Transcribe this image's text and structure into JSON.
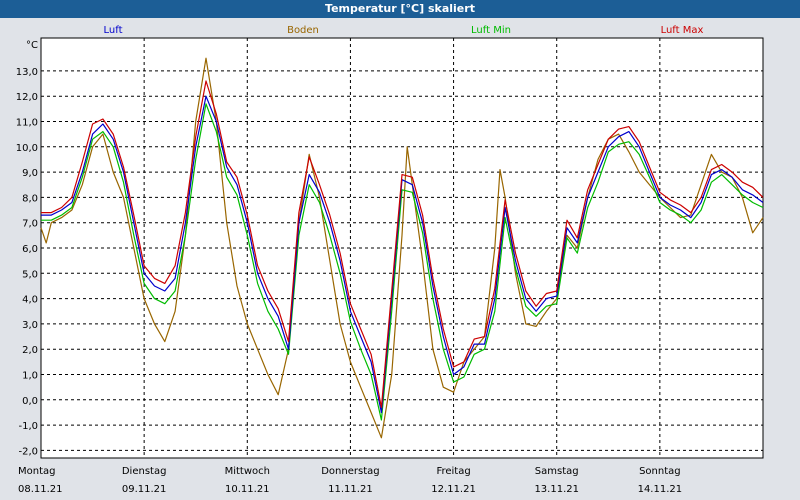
{
  "title": "Temperatur [°C] skaliert",
  "chart_data": {
    "type": "line",
    "title": "Temperatur [°C] skaliert",
    "ylabel": "°C",
    "xlabel": "",
    "ylim": [
      -2.3,
      14.3
    ],
    "yticks": [
      -2.0,
      -1.0,
      0.0,
      1.0,
      2.0,
      3.0,
      4.0,
      5.0,
      6.0,
      7.0,
      8.0,
      9.0,
      10.0,
      11.0,
      12.0,
      13.0
    ],
    "ytick_labels": [
      "-2,0",
      "-1,0",
      "0,0",
      "1,0",
      "2,0",
      "3,0",
      "4,0",
      "5,0",
      "6,0",
      "7,0",
      "8,0",
      "9,0",
      "10,0",
      "11,0",
      "12,0",
      "13,0"
    ],
    "xlim_days": [
      0,
      7
    ],
    "days": [
      {
        "weekday": "Montag",
        "date": "08.11.21"
      },
      {
        "weekday": "Dienstag",
        "date": "09.11.21"
      },
      {
        "weekday": "Mittwoch",
        "date": "10.11.21"
      },
      {
        "weekday": "Donnerstag",
        "date": "11.11.21"
      },
      {
        "weekday": "Freitag",
        "date": "12.11.21"
      },
      {
        "weekday": "Samstag",
        "date": "13.11.21"
      },
      {
        "weekday": "Sonntag",
        "date": "14.11.21"
      }
    ],
    "grid": true,
    "legend_position": "top",
    "series": [
      {
        "name": "Luft",
        "color": "#0000cc",
        "points": [
          [
            0,
            7.3
          ],
          [
            0.1,
            7.3
          ],
          [
            0.2,
            7.5
          ],
          [
            0.3,
            7.8
          ],
          [
            0.4,
            9.0
          ],
          [
            0.5,
            10.5
          ],
          [
            0.6,
            10.9
          ],
          [
            0.7,
            10.3
          ],
          [
            0.8,
            9.0
          ],
          [
            0.9,
            7.0
          ],
          [
            1.0,
            5.0
          ],
          [
            1.1,
            4.5
          ],
          [
            1.2,
            4.3
          ],
          [
            1.3,
            4.8
          ],
          [
            1.4,
            7.0
          ],
          [
            1.5,
            10.0
          ],
          [
            1.6,
            12.0
          ],
          [
            1.7,
            11.0
          ],
          [
            1.8,
            9.2
          ],
          [
            1.9,
            8.5
          ],
          [
            2.0,
            7.0
          ],
          [
            2.1,
            5.0
          ],
          [
            2.2,
            4.0
          ],
          [
            2.3,
            3.3
          ],
          [
            2.4,
            2.0
          ],
          [
            2.5,
            7.0
          ],
          [
            2.6,
            8.9
          ],
          [
            2.7,
            8.2
          ],
          [
            2.8,
            7.0
          ],
          [
            2.9,
            5.5
          ],
          [
            3.0,
            3.5
          ],
          [
            3.1,
            2.5
          ],
          [
            3.2,
            1.5
          ],
          [
            3.3,
            -0.5
          ],
          [
            3.4,
            4.0
          ],
          [
            3.5,
            8.7
          ],
          [
            3.6,
            8.5
          ],
          [
            3.7,
            7.0
          ],
          [
            3.8,
            4.5
          ],
          [
            3.9,
            2.5
          ],
          [
            4.0,
            1.0
          ],
          [
            4.1,
            1.3
          ],
          [
            4.2,
            2.2
          ],
          [
            4.3,
            2.2
          ],
          [
            4.4,
            4.0
          ],
          [
            4.5,
            7.6
          ],
          [
            4.6,
            5.5
          ],
          [
            4.7,
            4.0
          ],
          [
            4.8,
            3.5
          ],
          [
            4.9,
            4.0
          ],
          [
            5.0,
            4.1
          ],
          [
            5.1,
            6.8
          ],
          [
            5.2,
            6.2
          ],
          [
            5.3,
            8.0
          ],
          [
            5.4,
            9.0
          ],
          [
            5.5,
            10.0
          ],
          [
            5.6,
            10.4
          ],
          [
            5.7,
            10.6
          ],
          [
            5.8,
            10.0
          ],
          [
            5.9,
            9.0
          ],
          [
            6.0,
            8.0
          ],
          [
            6.1,
            7.7
          ],
          [
            6.2,
            7.5
          ],
          [
            6.3,
            7.2
          ],
          [
            6.4,
            7.8
          ],
          [
            6.5,
            8.9
          ],
          [
            6.6,
            9.1
          ],
          [
            6.7,
            8.8
          ],
          [
            6.8,
            8.3
          ],
          [
            6.9,
            8.1
          ],
          [
            7.0,
            7.8
          ]
        ]
      },
      {
        "name": "Boden",
        "color": "#996600",
        "points": [
          [
            0,
            6.8
          ],
          [
            0.05,
            6.2
          ],
          [
            0.1,
            7.0
          ],
          [
            0.2,
            7.2
          ],
          [
            0.3,
            7.5
          ],
          [
            0.4,
            8.5
          ],
          [
            0.5,
            10.0
          ],
          [
            0.6,
            10.5
          ],
          [
            0.7,
            9.0
          ],
          [
            0.8,
            8.0
          ],
          [
            0.9,
            6.0
          ],
          [
            1.0,
            4.0
          ],
          [
            1.1,
            3.0
          ],
          [
            1.2,
            2.3
          ],
          [
            1.3,
            3.5
          ],
          [
            1.4,
            6.5
          ],
          [
            1.5,
            11.0
          ],
          [
            1.6,
            13.5
          ],
          [
            1.7,
            11.0
          ],
          [
            1.8,
            7.0
          ],
          [
            1.9,
            4.5
          ],
          [
            2.0,
            3.0
          ],
          [
            2.1,
            2.0
          ],
          [
            2.2,
            1.0
          ],
          [
            2.3,
            0.2
          ],
          [
            2.4,
            2.0
          ],
          [
            2.5,
            7.0
          ],
          [
            2.6,
            9.7
          ],
          [
            2.7,
            8.0
          ],
          [
            2.8,
            5.5
          ],
          [
            2.9,
            3.0
          ],
          [
            3.0,
            1.5
          ],
          [
            3.1,
            0.5
          ],
          [
            3.2,
            -0.5
          ],
          [
            3.3,
            -1.5
          ],
          [
            3.4,
            1.0
          ],
          [
            3.5,
            6.5
          ],
          [
            3.55,
            10.0
          ],
          [
            3.6,
            8.5
          ],
          [
            3.7,
            5.5
          ],
          [
            3.8,
            2.0
          ],
          [
            3.9,
            0.5
          ],
          [
            4.0,
            0.3
          ],
          [
            4.1,
            1.5
          ],
          [
            4.2,
            2.0
          ],
          [
            4.3,
            2.5
          ],
          [
            4.4,
            6.0
          ],
          [
            4.45,
            9.1
          ],
          [
            4.5,
            8.0
          ],
          [
            4.6,
            5.0
          ],
          [
            4.7,
            3.0
          ],
          [
            4.8,
            2.9
          ],
          [
            4.9,
            3.5
          ],
          [
            5.0,
            4.0
          ],
          [
            5.1,
            6.5
          ],
          [
            5.2,
            6.0
          ],
          [
            5.3,
            8.0
          ],
          [
            5.4,
            9.5
          ],
          [
            5.5,
            10.3
          ],
          [
            5.6,
            10.5
          ],
          [
            5.7,
            9.8
          ],
          [
            5.8,
            9.0
          ],
          [
            5.9,
            8.5
          ],
          [
            6.0,
            8.0
          ],
          [
            6.1,
            7.6
          ],
          [
            6.2,
            7.2
          ],
          [
            6.3,
            7.3
          ],
          [
            6.4,
            8.5
          ],
          [
            6.5,
            9.7
          ],
          [
            6.6,
            9.0
          ],
          [
            6.7,
            8.8
          ],
          [
            6.8,
            8.0
          ],
          [
            6.9,
            6.6
          ],
          [
            7.0,
            7.2
          ]
        ]
      },
      {
        "name": "Luft Min",
        "color": "#00bb00",
        "points": [
          [
            0,
            7.1
          ],
          [
            0.1,
            7.1
          ],
          [
            0.2,
            7.3
          ],
          [
            0.3,
            7.6
          ],
          [
            0.4,
            8.8
          ],
          [
            0.5,
            10.3
          ],
          [
            0.6,
            10.6
          ],
          [
            0.7,
            10.0
          ],
          [
            0.8,
            8.6
          ],
          [
            0.9,
            6.5
          ],
          [
            1.0,
            4.6
          ],
          [
            1.1,
            4.0
          ],
          [
            1.2,
            3.8
          ],
          [
            1.3,
            4.3
          ],
          [
            1.4,
            6.5
          ],
          [
            1.5,
            9.5
          ],
          [
            1.6,
            11.7
          ],
          [
            1.7,
            10.6
          ],
          [
            1.8,
            8.8
          ],
          [
            1.9,
            8.1
          ],
          [
            2.0,
            6.5
          ],
          [
            2.1,
            4.6
          ],
          [
            2.2,
            3.5
          ],
          [
            2.3,
            2.8
          ],
          [
            2.4,
            1.8
          ],
          [
            2.5,
            6.5
          ],
          [
            2.6,
            8.5
          ],
          [
            2.7,
            7.8
          ],
          [
            2.8,
            6.5
          ],
          [
            2.9,
            5.0
          ],
          [
            3.0,
            3.1
          ],
          [
            3.1,
            2.0
          ],
          [
            3.2,
            1.0
          ],
          [
            3.3,
            -0.8
          ],
          [
            3.4,
            3.5
          ],
          [
            3.5,
            8.3
          ],
          [
            3.6,
            8.2
          ],
          [
            3.7,
            6.6
          ],
          [
            3.8,
            4.0
          ],
          [
            3.9,
            2.0
          ],
          [
            4.0,
            0.7
          ],
          [
            4.1,
            0.9
          ],
          [
            4.2,
            1.8
          ],
          [
            4.3,
            2.0
          ],
          [
            4.4,
            3.5
          ],
          [
            4.5,
            7.2
          ],
          [
            4.6,
            5.2
          ],
          [
            4.7,
            3.7
          ],
          [
            4.8,
            3.3
          ],
          [
            4.9,
            3.7
          ],
          [
            5.0,
            3.8
          ],
          [
            5.1,
            6.4
          ],
          [
            5.2,
            5.8
          ],
          [
            5.3,
            7.6
          ],
          [
            5.4,
            8.6
          ],
          [
            5.5,
            9.8
          ],
          [
            5.6,
            10.1
          ],
          [
            5.7,
            10.2
          ],
          [
            5.8,
            9.7
          ],
          [
            5.9,
            8.8
          ],
          [
            6.0,
            7.8
          ],
          [
            6.1,
            7.5
          ],
          [
            6.2,
            7.3
          ],
          [
            6.3,
            7.0
          ],
          [
            6.4,
            7.5
          ],
          [
            6.5,
            8.6
          ],
          [
            6.6,
            8.9
          ],
          [
            6.7,
            8.5
          ],
          [
            6.8,
            8.1
          ],
          [
            6.9,
            7.8
          ],
          [
            7.0,
            7.6
          ]
        ]
      },
      {
        "name": "Luft Max",
        "color": "#cc0000",
        "points": [
          [
            0,
            7.4
          ],
          [
            0.1,
            7.4
          ],
          [
            0.2,
            7.6
          ],
          [
            0.3,
            8.0
          ],
          [
            0.4,
            9.4
          ],
          [
            0.5,
            10.9
          ],
          [
            0.6,
            11.1
          ],
          [
            0.7,
            10.5
          ],
          [
            0.8,
            9.2
          ],
          [
            0.9,
            7.3
          ],
          [
            1.0,
            5.3
          ],
          [
            1.1,
            4.8
          ],
          [
            1.2,
            4.6
          ],
          [
            1.3,
            5.3
          ],
          [
            1.4,
            7.4
          ],
          [
            1.5,
            10.4
          ],
          [
            1.6,
            12.6
          ],
          [
            1.7,
            11.3
          ],
          [
            1.8,
            9.4
          ],
          [
            1.9,
            8.8
          ],
          [
            2.0,
            7.3
          ],
          [
            2.1,
            5.3
          ],
          [
            2.2,
            4.3
          ],
          [
            2.3,
            3.6
          ],
          [
            2.4,
            2.3
          ],
          [
            2.5,
            7.4
          ],
          [
            2.6,
            9.6
          ],
          [
            2.7,
            8.5
          ],
          [
            2.8,
            7.3
          ],
          [
            2.9,
            5.8
          ],
          [
            3.0,
            3.8
          ],
          [
            3.1,
            2.8
          ],
          [
            3.2,
            1.8
          ],
          [
            3.3,
            -0.3
          ],
          [
            3.4,
            4.3
          ],
          [
            3.5,
            8.9
          ],
          [
            3.6,
            8.8
          ],
          [
            3.7,
            7.3
          ],
          [
            3.8,
            4.8
          ],
          [
            3.9,
            2.8
          ],
          [
            4.0,
            1.3
          ],
          [
            4.1,
            1.5
          ],
          [
            4.2,
            2.4
          ],
          [
            4.3,
            2.5
          ],
          [
            4.4,
            4.4
          ],
          [
            4.5,
            7.9
          ],
          [
            4.6,
            5.8
          ],
          [
            4.7,
            4.3
          ],
          [
            4.8,
            3.7
          ],
          [
            4.9,
            4.2
          ],
          [
            5.0,
            4.3
          ],
          [
            5.1,
            7.1
          ],
          [
            5.2,
            6.4
          ],
          [
            5.3,
            8.3
          ],
          [
            5.4,
            9.3
          ],
          [
            5.5,
            10.3
          ],
          [
            5.6,
            10.7
          ],
          [
            5.7,
            10.8
          ],
          [
            5.8,
            10.2
          ],
          [
            5.9,
            9.2
          ],
          [
            6.0,
            8.2
          ],
          [
            6.1,
            7.9
          ],
          [
            6.2,
            7.7
          ],
          [
            6.3,
            7.4
          ],
          [
            6.4,
            8.0
          ],
          [
            6.5,
            9.1
          ],
          [
            6.6,
            9.3
          ],
          [
            6.7,
            9.0
          ],
          [
            6.8,
            8.6
          ],
          [
            6.9,
            8.4
          ],
          [
            7.0,
            8.0
          ]
        ]
      }
    ]
  }
}
